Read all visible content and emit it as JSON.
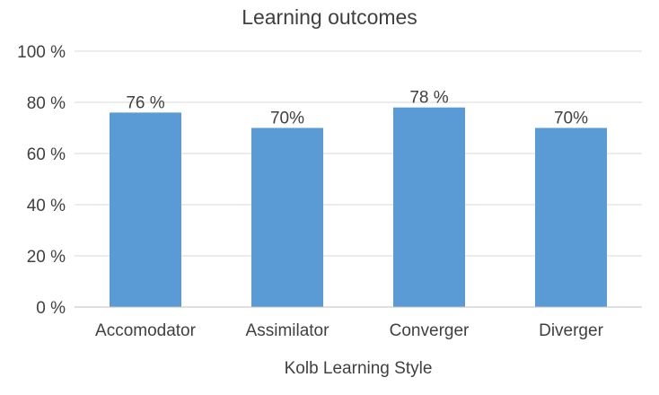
{
  "chart_data": {
    "type": "bar",
    "title": "Learning outcomes",
    "xlabel": "Kolb Learning Style",
    "ylabel": "",
    "categories": [
      "Accomodator",
      "Assimilator",
      "Converger",
      "Diverger"
    ],
    "values": [
      76,
      70,
      78,
      70
    ],
    "data_labels": [
      "76 %",
      "70%",
      "78 %",
      "70%"
    ],
    "ylim": [
      0,
      100
    ],
    "yticks": [
      0,
      20,
      40,
      60,
      80,
      100
    ],
    "ytick_labels": [
      "0 %",
      "20 %",
      "40 %",
      "60 %",
      "80 %",
      "100 %"
    ],
    "grid": true,
    "legend": "none",
    "bar_color": "#5b9bd5"
  }
}
